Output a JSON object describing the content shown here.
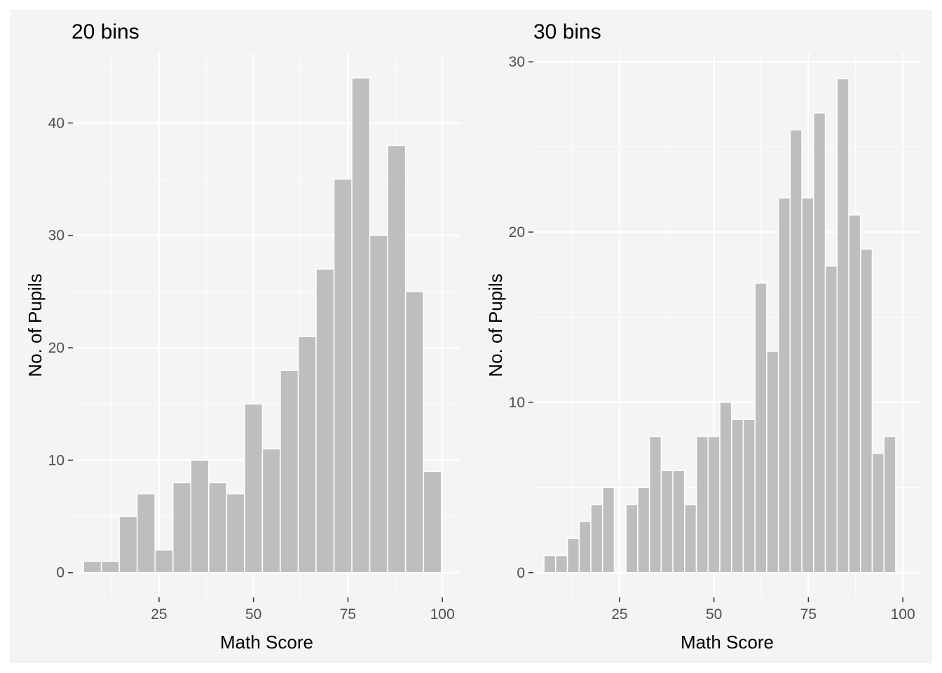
{
  "chart_data": [
    {
      "type": "bar",
      "title": "20 bins",
      "xlabel": "Math Score",
      "ylabel": "No. of Pupils",
      "x_ticks": [
        "25",
        "50",
        "75",
        "100"
      ],
      "y_ticks": [
        "0",
        "10",
        "20",
        "30",
        "40"
      ],
      "xlim": [
        2.2,
        104.8
      ],
      "ylim": [
        -2.2,
        46.2
      ],
      "bin_width": 4.737,
      "bin_starts": [
        5.0,
        9.737,
        14.474,
        19.211,
        23.947,
        28.684,
        33.421,
        38.158,
        42.895,
        47.632,
        52.368,
        57.105,
        61.842,
        66.579,
        71.316,
        76.053,
        80.789,
        85.526,
        90.263,
        95.0
      ],
      "values": [
        1,
        1,
        5,
        7,
        2,
        8,
        10,
        8,
        7,
        15,
        11,
        18,
        21,
        27,
        35,
        44,
        30,
        38,
        25,
        9
      ],
      "grid": true,
      "bar_color": "#bebebe"
    },
    {
      "type": "bar",
      "title": "30 bins",
      "xlabel": "Math Score",
      "ylabel": "No. of Pupils",
      "x_ticks": [
        "25",
        "50",
        "75",
        "100"
      ],
      "y_ticks": [
        "0",
        "10",
        "20",
        "30"
      ],
      "xlim": [
        2.2,
        104.8
      ],
      "ylim": [
        -1.45,
        30.5
      ],
      "bin_width": 3.103,
      "bin_starts": [
        5.0,
        8.103,
        11.207,
        14.31,
        17.414,
        20.517,
        23.621,
        26.724,
        29.828,
        32.931,
        36.034,
        39.138,
        42.241,
        45.345,
        48.448,
        51.552,
        54.655,
        57.759,
        60.862,
        63.966,
        67.069,
        70.172,
        73.276,
        76.379,
        79.483,
        82.586,
        85.69,
        88.793,
        91.897,
        95.0
      ],
      "values": [
        1,
        1,
        2,
        3,
        4,
        5,
        0,
        4,
        5,
        8,
        6,
        6,
        4,
        8,
        8,
        10,
        9,
        9,
        17,
        13,
        22,
        26,
        22,
        27,
        18,
        29,
        21,
        19,
        7,
        8
      ],
      "grid": true,
      "bar_color": "#bebebe"
    }
  ]
}
